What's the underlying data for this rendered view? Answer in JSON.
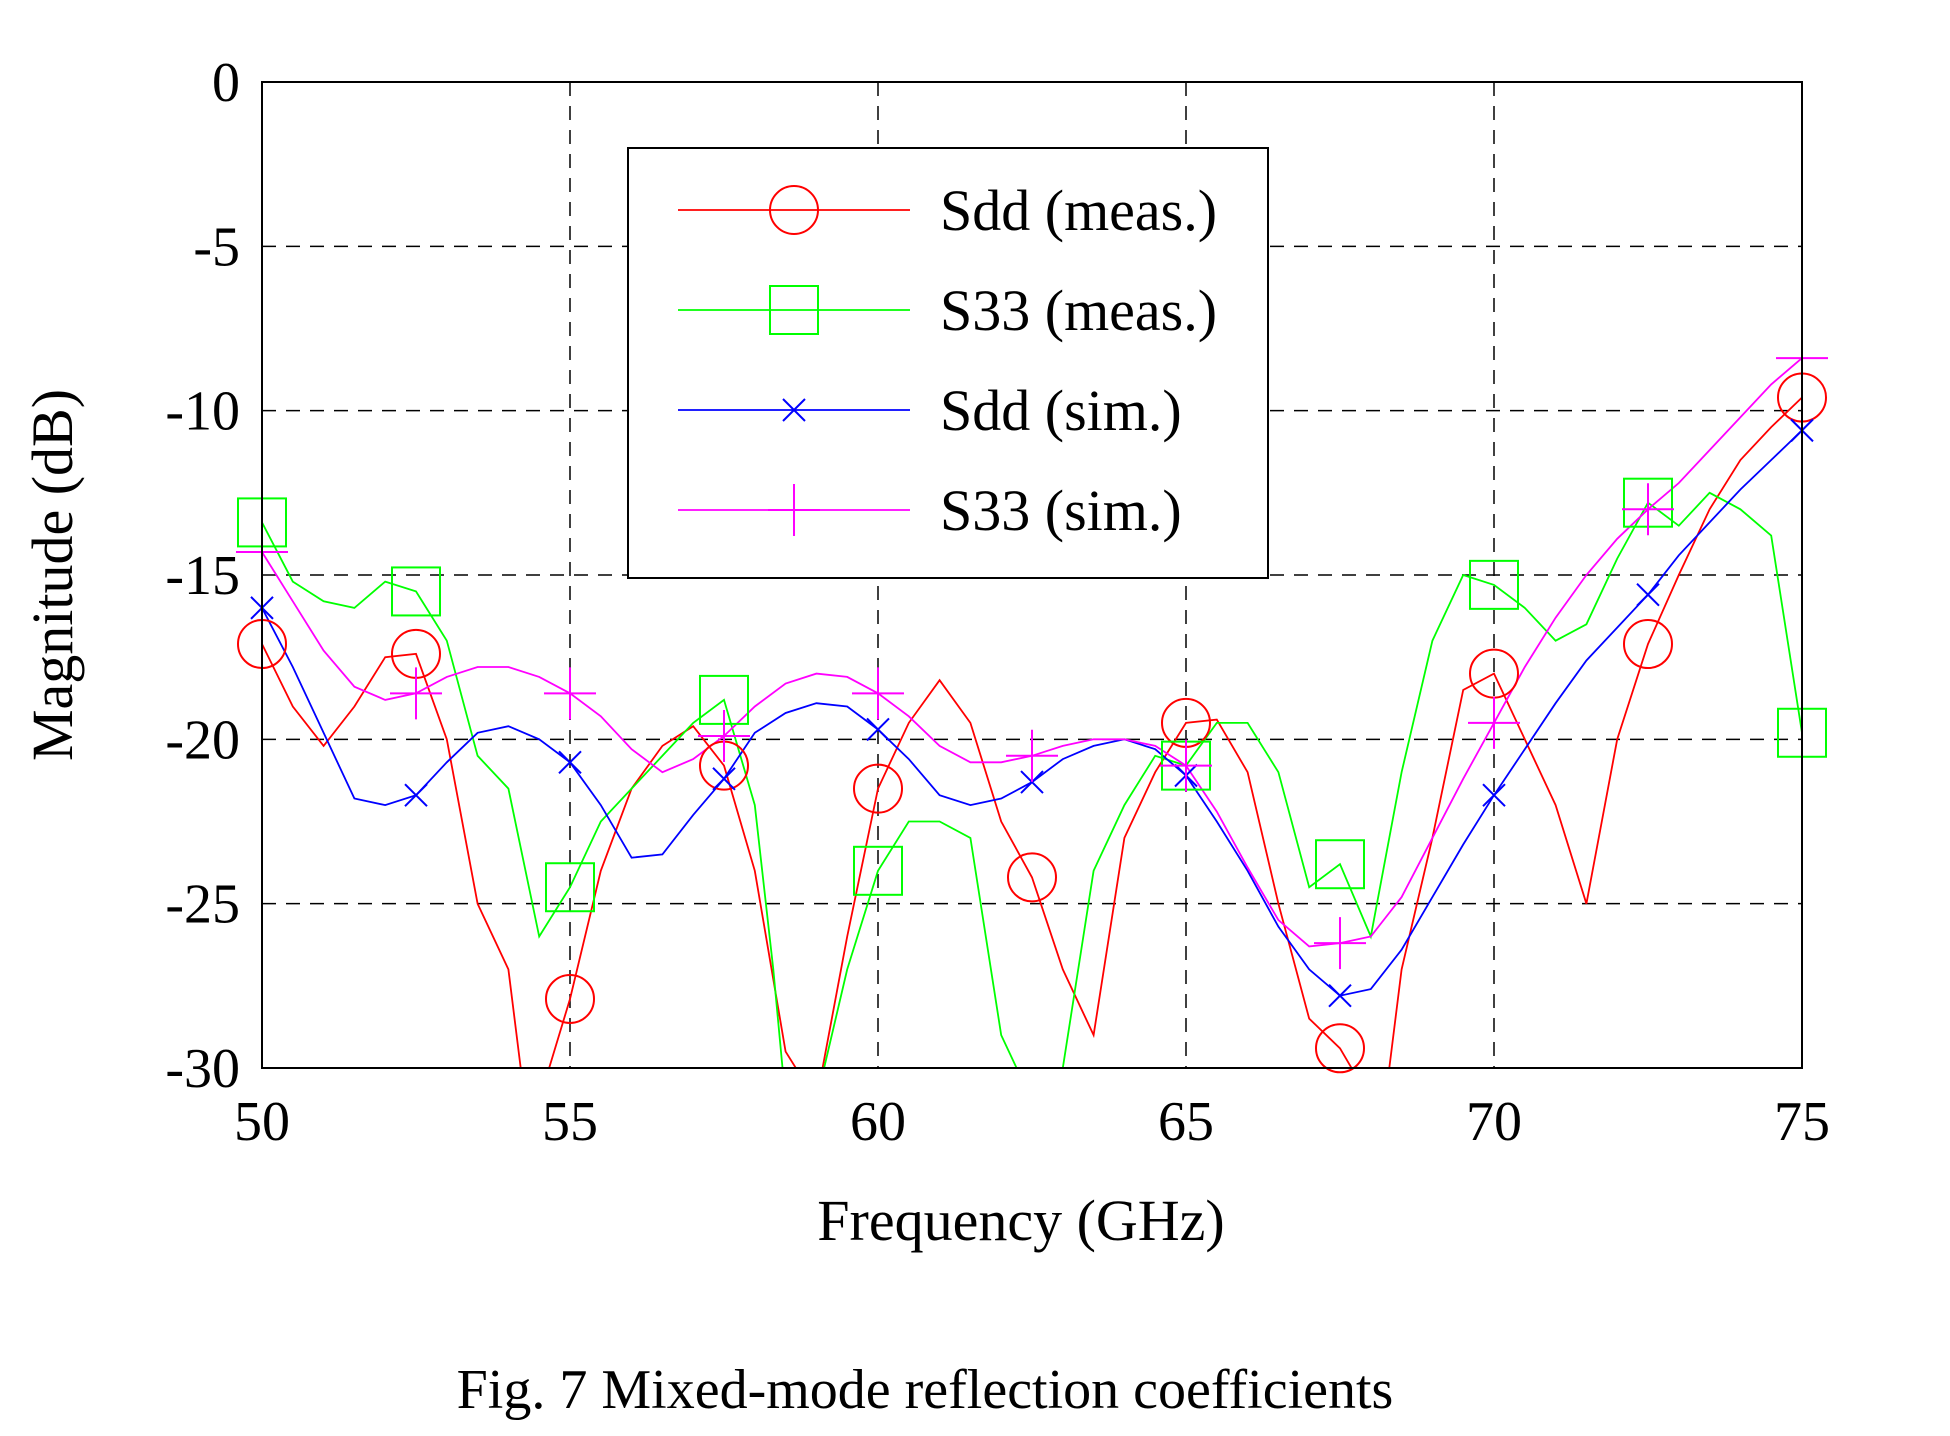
{
  "caption": "Fig. 7  Mixed-mode reflection coefficients",
  "chart_data": {
    "type": "line",
    "title": "",
    "xlabel": "Frequency (GHz)",
    "ylabel": "Magnitude (dB)",
    "xlim": [
      50,
      75
    ],
    "ylim": [
      -30,
      0
    ],
    "xticks": [
      50,
      55,
      60,
      65,
      70,
      75
    ],
    "yticks": [
      0,
      -5,
      -10,
      -15,
      -20,
      -25,
      -30
    ],
    "grid": true,
    "legend_position": "top-center",
    "series": [
      {
        "name": "Sdd (meas.)",
        "color": "#ff0000",
        "marker": "circle",
        "x": [
          50,
          50.5,
          51,
          51.5,
          52,
          52.5,
          53,
          53.5,
          54,
          54.2,
          54.5,
          55,
          55.5,
          56,
          56.5,
          57,
          57.5,
          58,
          58.5,
          59,
          59.5,
          60,
          60.5,
          61,
          61.5,
          62,
          62.5,
          63,
          63.5,
          64,
          64.5,
          65,
          65.5,
          66,
          66.5,
          67,
          67.5,
          68,
          68.3,
          68.5,
          69,
          69.5,
          70,
          70.5,
          71,
          71.5,
          72,
          72.5,
          73,
          73.5,
          74,
          74.5,
          75
        ],
        "y": [
          -17.1,
          -19,
          -20.2,
          -19,
          -17.5,
          -17.4,
          -20,
          -25,
          -27,
          -30,
          -31,
          -27.9,
          -24,
          -21.5,
          -20.2,
          -19.6,
          -20.8,
          -24,
          -29.5,
          -31,
          -26,
          -21.5,
          -19.5,
          -18.2,
          -19.5,
          -22.5,
          -24.2,
          -27,
          -29,
          -23,
          -21,
          -19.5,
          -19.4,
          -21,
          -25,
          -28.5,
          -29.4,
          -31,
          -30,
          -27,
          -23,
          -18.5,
          -18,
          -20,
          -22,
          -25,
          -20,
          -17.1,
          -15,
          -13,
          -11.5,
          -10.5,
          -9.6
        ]
      },
      {
        "name": "S33 (meas.)",
        "color": "#00ff00",
        "marker": "square",
        "x": [
          50,
          50.5,
          51,
          51.5,
          52,
          52.5,
          53,
          53.5,
          54,
          54.5,
          55,
          55.5,
          56,
          56.5,
          57,
          57.5,
          58,
          58.3,
          58.5,
          59,
          59.5,
          60,
          60.5,
          61,
          61.5,
          62,
          62.5,
          63,
          63.5,
          64,
          64.5,
          65,
          65.5,
          66,
          66.5,
          67,
          67.5,
          68,
          68.5,
          69,
          69.5,
          70,
          70.5,
          71,
          71.5,
          72,
          72.5,
          73,
          73.5,
          74,
          74.5,
          75
        ],
        "y": [
          -13.4,
          -15.2,
          -15.8,
          -16,
          -15.2,
          -15.5,
          -17,
          -20.5,
          -21.5,
          -26,
          -24.5,
          -22.5,
          -21.5,
          -20.5,
          -19.5,
          -18.8,
          -22,
          -27,
          -31,
          -31,
          -27,
          -24,
          -22.5,
          -22.5,
          -23,
          -29,
          -31,
          -30,
          -24,
          -22,
          -20.5,
          -20.8,
          -19.5,
          -19.5,
          -21,
          -24.5,
          -23.8,
          -26,
          -21,
          -17,
          -15,
          -15.3,
          -16,
          -17,
          -16.5,
          -14.5,
          -12.8,
          -13.5,
          -12.5,
          -13,
          -13.8,
          -19.8
        ]
      },
      {
        "name": "Sdd (sim.)",
        "color": "#0000ff",
        "marker": "x",
        "x": [
          50,
          50.5,
          51,
          51.5,
          52,
          52.5,
          53,
          53.5,
          54,
          54.5,
          55,
          55.5,
          56,
          56.5,
          57,
          57.5,
          58,
          58.5,
          59,
          59.5,
          60,
          60.5,
          61,
          61.5,
          62,
          62.5,
          63,
          63.5,
          64,
          64.5,
          65,
          65.5,
          66,
          66.5,
          67,
          67.5,
          68,
          68.5,
          69,
          69.5,
          70,
          70.5,
          71,
          71.5,
          72,
          72.5,
          73,
          73.5,
          74,
          74.5,
          75
        ],
        "y": [
          -16,
          -17.8,
          -19.8,
          -21.8,
          -22,
          -21.7,
          -20.7,
          -19.8,
          -19.6,
          -20,
          -20.7,
          -22,
          -23.6,
          -23.5,
          -22.3,
          -21.2,
          -19.8,
          -19.2,
          -18.9,
          -19,
          -19.7,
          -20.6,
          -21.7,
          -22,
          -21.8,
          -21.3,
          -20.6,
          -20.2,
          -20,
          -20.3,
          -21.1,
          -22.5,
          -24,
          -25.7,
          -27,
          -27.8,
          -27.6,
          -26.4,
          -24.8,
          -23.2,
          -21.7,
          -20.3,
          -18.9,
          -17.6,
          -16.6,
          -15.6,
          -14.4,
          -13.4,
          -12.4,
          -11.5,
          -10.6
        ]
      },
      {
        "name": "S33 (sim.)",
        "color": "#ff00ff",
        "marker": "plus",
        "x": [
          50,
          50.5,
          51,
          51.5,
          52,
          52.5,
          53,
          53.5,
          54,
          54.5,
          55,
          55.5,
          56,
          56.5,
          57,
          57.5,
          58,
          58.5,
          59,
          59.5,
          60,
          60.5,
          61,
          61.5,
          62,
          62.5,
          63,
          63.5,
          64,
          64.5,
          65,
          65.5,
          66,
          66.5,
          67,
          67.5,
          68,
          68.5,
          69,
          69.5,
          70,
          70.5,
          71,
          71.5,
          72,
          72.5,
          73,
          73.5,
          74,
          74.5,
          75
        ],
        "y": [
          -14.3,
          -15.8,
          -17.3,
          -18.4,
          -18.8,
          -18.6,
          -18.1,
          -17.8,
          -17.8,
          -18.1,
          -18.6,
          -19.3,
          -20.3,
          -21,
          -20.6,
          -19.9,
          -19,
          -18.3,
          -18,
          -18.1,
          -18.6,
          -19.3,
          -20.2,
          -20.7,
          -20.7,
          -20.5,
          -20.2,
          -20,
          -20,
          -20.2,
          -20.8,
          -22.2,
          -23.9,
          -25.5,
          -26.3,
          -26.2,
          -26,
          -24.8,
          -23,
          -21.2,
          -19.5,
          -17.8,
          -16.3,
          -15,
          -13.9,
          -13,
          -12.2,
          -11.2,
          -10.2,
          -9.2,
          -8.4
        ]
      }
    ]
  }
}
